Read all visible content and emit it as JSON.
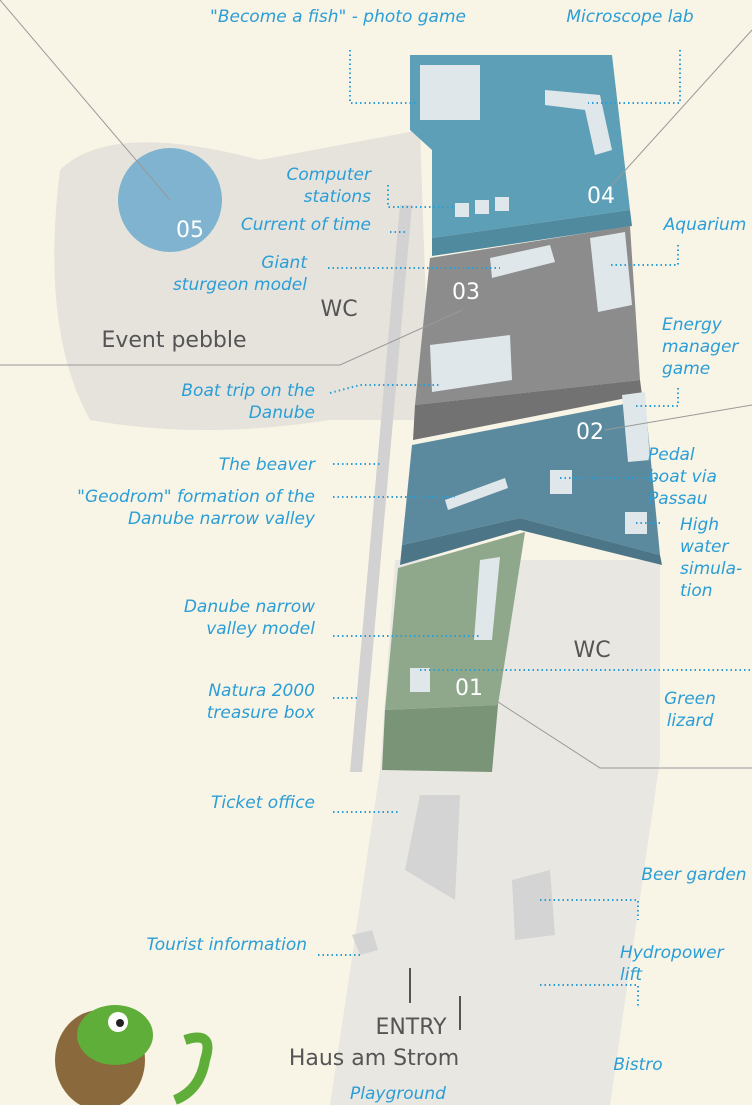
{
  "map": {
    "labels": [
      [
        "\"Become a fish\" - photo game"
      ],
      [
        "Microscope lab"
      ],
      [
        "Computer",
        "stations"
      ],
      [
        "Current of time"
      ],
      [
        "Giant",
        "sturgeon model"
      ],
      [
        "Aquarium"
      ],
      [
        "Energy",
        "manager",
        "game"
      ],
      [
        "Boat trip on the",
        "Danube"
      ],
      [
        "The beaver"
      ],
      [
        "\"Geodrom\" formation of the",
        "Danube narrow valley"
      ],
      [
        "Pedal",
        "boat via",
        "Passau"
      ],
      [
        "High",
        "water",
        "simula-",
        "tion"
      ],
      [
        "Danube narrow",
        "valley model"
      ],
      [
        "Natura  2000",
        "treasure box"
      ],
      [
        "Green",
        "lizard"
      ],
      [
        "Ticket office"
      ],
      [
        "Beer garden"
      ],
      [
        "Tourist information"
      ],
      [
        "Hydropower",
        "lift"
      ],
      [
        "Bistro"
      ],
      [
        "Playground"
      ]
    ],
    "zones": [
      "01",
      "02",
      "03",
      "04",
      "05"
    ],
    "places": {
      "event": "Event pebble",
      "wc": [
        "WC",
        "WC"
      ],
      "entry": "ENTRY",
      "house": "Haus am Strom"
    }
  }
}
